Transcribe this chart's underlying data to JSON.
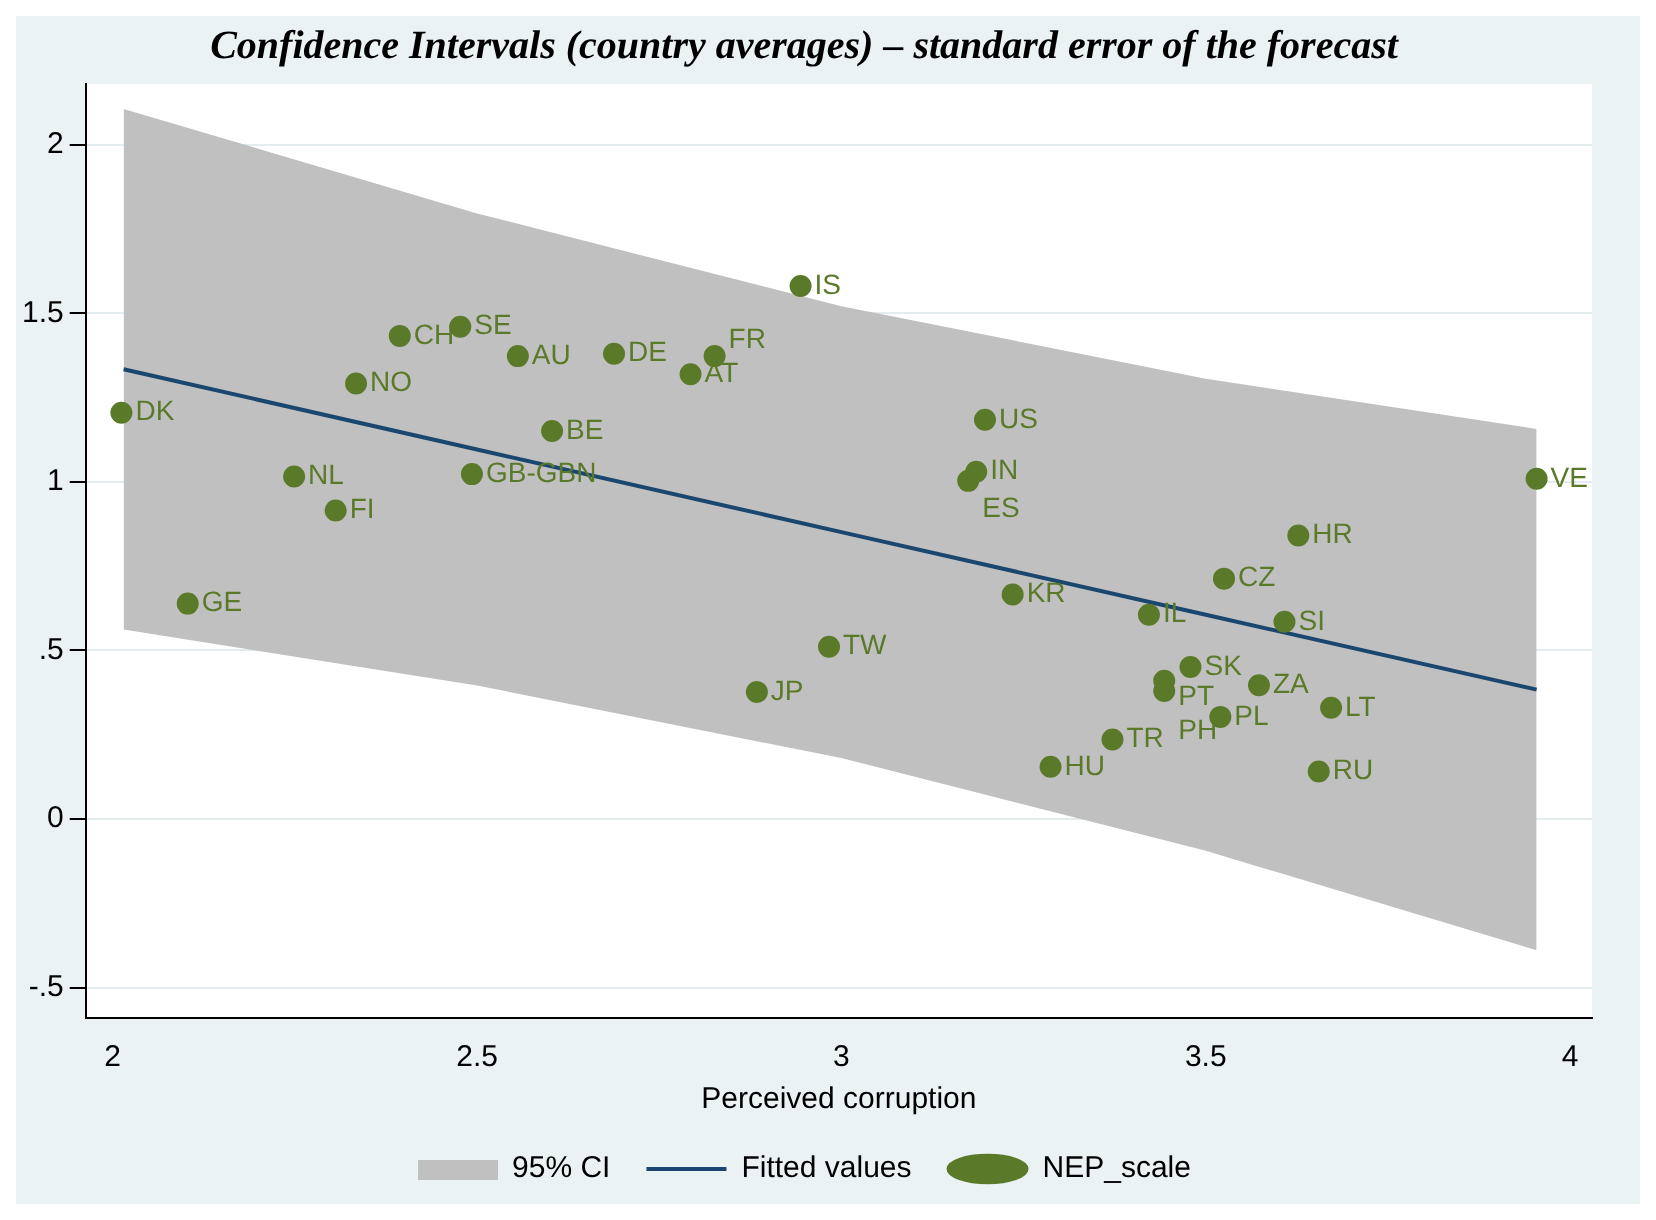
{
  "chart_data": {
    "type": "scatter",
    "title": "Confidence Intervals (country averages) – standard error of the forecast",
    "xlabel": "Perceived corruption",
    "xlim": [
      1.963,
      4.03
    ],
    "xticks": [
      2,
      2.5,
      3,
      3.5,
      4
    ],
    "ylim": [
      -0.59,
      2.18
    ],
    "yticks": [
      {
        "value": -0.5,
        "label": "-.5"
      },
      0,
      {
        "value": 0.5,
        "label": ".5"
      },
      1,
      1.5,
      2
    ],
    "grid": "y",
    "legend": "bottom",
    "marker": "circle",
    "series": [
      {
        "name": "Fitted values",
        "type": "line",
        "color": "#1a476f",
        "marker": "none",
        "line_style": "solid",
        "x": [
          2.015,
          2.5,
          3.0,
          3.5,
          3.954
        ],
        "values": [
          1.334,
          1.096,
          0.851,
          0.606,
          0.384
        ],
        "lower": [
          0.562,
          0.396,
          0.181,
          -0.094,
          -0.389
        ],
        "upper": [
          2.106,
          1.796,
          1.521,
          1.306,
          1.157
        ]
      },
      {
        "name": "NEP_scale",
        "type": "scatter",
        "color": "#5a7a2a",
        "x": [
          2.012,
          2.103,
          2.249,
          2.306,
          2.334,
          2.394,
          2.477,
          2.493,
          2.556,
          2.603,
          2.688,
          2.793,
          2.826,
          2.944,
          2.884,
          2.983,
          3.197,
          3.185,
          3.174,
          3.235,
          3.422,
          3.287,
          3.372,
          3.479,
          3.443,
          3.443,
          3.573,
          3.52,
          3.672,
          3.655,
          3.525,
          3.627,
          3.608,
          3.954
        ],
        "values": [
          1.205,
          0.639,
          1.016,
          0.915,
          1.292,
          1.433,
          1.46,
          1.023,
          1.373,
          1.151,
          1.38,
          1.319,
          1.373,
          1.581,
          0.377,
          0.511,
          1.184,
          1.03,
          1.003,
          0.666,
          0.606,
          0.155,
          0.236,
          0.451,
          0.41,
          0.38,
          0.397,
          0.303,
          0.33,
          0.141,
          0.713,
          0.841,
          0.585,
          1.009
        ]
      }
    ],
    "annotations": [
      "95% CI",
      {
        "text": "DK",
        "x": 2.012,
        "y": 1.205
      },
      {
        "text": "GE",
        "x": 2.103,
        "y": 0.639
      },
      {
        "text": "NL",
        "x": 2.249,
        "y": 1.016
      },
      {
        "text": "FI",
        "x": 2.306,
        "y": 0.915
      },
      {
        "text": "NO",
        "x": 2.334,
        "y": 1.292
      },
      {
        "text": "CH",
        "x": 2.394,
        "y": 1.433
      },
      {
        "text": "SE",
        "x": 2.477,
        "y": 1.46
      },
      {
        "text": "GB-GBN",
        "x": 2.493,
        "y": 1.023
      },
      {
        "text": "AU",
        "x": 2.556,
        "y": 1.373
      },
      {
        "text": "BE",
        "x": 2.603,
        "y": 1.151
      },
      {
        "text": "DE",
        "x": 2.688,
        "y": 1.38
      },
      {
        "text": "AT",
        "x": 2.793,
        "y": 1.319
      },
      {
        "text": "FR",
        "x": 2.826,
        "y": 1.373
      },
      {
        "text": "IS",
        "x": 2.944,
        "y": 1.581
      },
      {
        "text": "JP",
        "x": 2.884,
        "y": 0.377
      },
      {
        "text": "TW",
        "x": 2.983,
        "y": 0.511
      },
      {
        "text": "US",
        "x": 3.197,
        "y": 1.184
      },
      {
        "text": "IN",
        "x": 3.185,
        "y": 1.03
      },
      {
        "text": "ES",
        "x": 3.174,
        "y": 1.003
      },
      {
        "text": "KR",
        "x": 3.235,
        "y": 0.666
      },
      {
        "text": "IL",
        "x": 3.422,
        "y": 0.606
      },
      {
        "text": "HU",
        "x": 3.287,
        "y": 0.155
      },
      {
        "text": "TR",
        "x": 3.372,
        "y": 0.236
      },
      {
        "text": "SK",
        "x": 3.479,
        "y": 0.451
      },
      {
        "text": "PT",
        "x": 3.443,
        "y": 0.41
      },
      {
        "text": "PH",
        "x": 3.443,
        "y": 0.38
      },
      {
        "text": "ZA",
        "x": 3.573,
        "y": 0.397
      },
      {
        "text": "PL",
        "x": 3.52,
        "y": 0.303
      },
      {
        "text": "LT",
        "x": 3.672,
        "y": 0.33
      },
      {
        "text": "RU",
        "x": 3.655,
        "y": 0.141
      },
      {
        "text": "CZ",
        "x": 3.525,
        "y": 0.713
      },
      {
        "text": "HR",
        "x": 3.627,
        "y": 0.841
      },
      {
        "text": "SI",
        "x": 3.608,
        "y": 0.585
      },
      {
        "text": "VE",
        "x": 3.954,
        "y": 1.009
      }
    ]
  }
}
